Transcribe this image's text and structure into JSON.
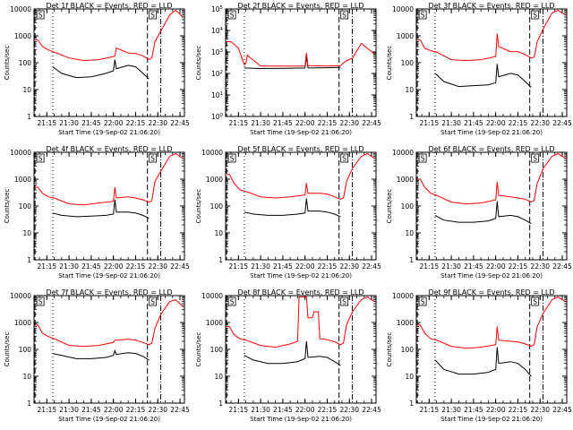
{
  "colors": {
    "events": "#000000",
    "lld": "#ff0000",
    "background": "#ffffff"
  },
  "x_ticks": [
    "21:15",
    "21:30",
    "21:45",
    "22:00",
    "22:15",
    "22:30",
    "22:45"
  ],
  "xlabel": "Start Time (19-Sep-02 21:06:20)",
  "ylabel": "Counts/sec",
  "chart_data": [
    {
      "type": "line",
      "title": "Det 1f BLACK = Events, RED = LLD",
      "scale": "log",
      "ylim": [
        1,
        10000
      ],
      "y_ticks": [
        "1",
        "10",
        "100",
        "1000",
        "10000"
      ],
      "x_range": [
        "21:06:20",
        "22:48"
      ],
      "saa_marker": "S",
      "vlines": {
        "dashed": [
          "21:07",
          "22:23"
        ],
        "dotted": [
          "21:19"
        ],
        "dashdot": [
          "22:32"
        ]
      },
      "series": [
        {
          "color": "black",
          "x": [
            "21:19",
            "21:25",
            "21:35",
            "21:45",
            "21:55",
            "22:00",
            "22:01",
            "22:02",
            "22:10",
            "22:15",
            "22:20",
            "22:24"
          ],
          "y": [
            70,
            40,
            28,
            30,
            40,
            50,
            130,
            60,
            80,
            70,
            40,
            25
          ]
        },
        {
          "color": "red",
          "x": [
            "21:07",
            "21:09",
            "21:12",
            "21:16",
            "21:20",
            "21:30",
            "21:40",
            "21:50",
            "22:00",
            "22:01",
            "22:02",
            "22:10",
            "22:15",
            "22:20",
            "22:24",
            "22:26",
            "22:28",
            "22:32",
            "22:38",
            "22:42",
            "22:47"
          ],
          "y": [
            700,
            700,
            400,
            300,
            250,
            150,
            120,
            130,
            170,
            180,
            350,
            230,
            220,
            180,
            130,
            150,
            600,
            1500,
            6000,
            9000,
            5000
          ]
        }
      ]
    },
    {
      "type": "line",
      "title": "Det 2f BLACK = Events, RED = LLD",
      "scale": "log",
      "ylim": [
        1,
        100000
      ],
      "y_ticks": [
        "10^0",
        "10^1",
        "10^2",
        "10^3",
        "10^4",
        "10^5"
      ],
      "x_range": [
        "21:06:20",
        "22:48"
      ],
      "saa_marker": "S",
      "vlines": {
        "dashed": [
          "21:07",
          "22:23"
        ],
        "dotted": [
          "21:19"
        ],
        "dashdot": [
          "22:32"
        ]
      },
      "series": [
        {
          "color": "black",
          "x": [
            "21:19",
            "21:30",
            "21:45",
            "22:00",
            "22:01",
            "22:02",
            "22:15",
            "22:24"
          ],
          "y": [
            180,
            170,
            175,
            180,
            600,
            180,
            185,
            190
          ]
        },
        {
          "color": "red",
          "x": [
            "21:07",
            "21:10",
            "21:15",
            "21:19",
            "21:20",
            "21:21",
            "21:30",
            "21:45",
            "22:00",
            "22:01",
            "22:02",
            "22:15",
            "22:24",
            "22:28",
            "22:32",
            "22:38",
            "22:42",
            "22:47"
          ],
          "y": [
            3000,
            3000,
            1500,
            250,
            300,
            700,
            220,
            220,
            220,
            900,
            230,
            220,
            230,
            400,
            500,
            2500,
            1500,
            800
          ]
        }
      ]
    },
    {
      "type": "line",
      "title": "Det 3f BLACK = Events, RED = LLD",
      "scale": "log",
      "ylim": [
        1,
        10000
      ],
      "y_ticks": [
        "1",
        "10",
        "100",
        "1000",
        "10000"
      ],
      "x_range": [
        "21:06:20",
        "22:48"
      ],
      "saa_marker": "S",
      "vlines": {
        "dashed": [
          "21:07",
          "22:23"
        ],
        "dotted": [
          "21:19"
        ],
        "dashdot": [
          "22:32"
        ]
      },
      "series": [
        {
          "color": "black",
          "x": [
            "21:19",
            "21:25",
            "21:35",
            "21:45",
            "21:55",
            "22:00",
            "22:01",
            "22:02",
            "22:10",
            "22:15",
            "22:20",
            "22:24"
          ],
          "y": [
            40,
            20,
            13,
            14,
            15,
            18,
            90,
            30,
            40,
            35,
            20,
            12
          ]
        },
        {
          "color": "red",
          "x": [
            "21:07",
            "21:09",
            "21:12",
            "21:16",
            "21:20",
            "21:30",
            "21:40",
            "21:50",
            "22:00",
            "22:01",
            "22:02",
            "22:10",
            "22:15",
            "22:20",
            "22:24",
            "22:26",
            "22:28",
            "22:32",
            "22:38",
            "22:42",
            "22:47"
          ],
          "y": [
            700,
            700,
            350,
            280,
            250,
            130,
            120,
            130,
            170,
            1200,
            400,
            260,
            260,
            200,
            150,
            160,
            600,
            1800,
            7000,
            9000,
            6000
          ]
        }
      ]
    },
    {
      "type": "line",
      "title": "Det 4f BLACK = Events, RED = LLD",
      "scale": "log",
      "ylim": [
        1,
        10000
      ],
      "y_ticks": [
        "1",
        "10",
        "100",
        "1000",
        "10000"
      ],
      "x_range": [
        "21:06:20",
        "22:48"
      ],
      "saa_marker": "S",
      "vlines": {
        "dashed": [
          "21:07",
          "22:23"
        ],
        "dotted": [
          "21:19"
        ],
        "dashdot": [
          "22:32"
        ]
      },
      "series": [
        {
          "color": "black",
          "x": [
            "21:19",
            "21:25",
            "21:35",
            "21:45",
            "21:55",
            "22:00",
            "22:01",
            "22:02",
            "22:10",
            "22:15",
            "22:20",
            "22:24"
          ],
          "y": [
            55,
            45,
            40,
            42,
            45,
            50,
            170,
            60,
            60,
            55,
            45,
            35
          ]
        },
        {
          "color": "red",
          "x": [
            "21:07",
            "21:09",
            "21:12",
            "21:16",
            "21:20",
            "21:30",
            "21:40",
            "21:50",
            "22:00",
            "22:01",
            "22:02",
            "22:10",
            "22:15",
            "22:20",
            "22:24",
            "22:26",
            "22:28",
            "22:32",
            "22:38",
            "22:42",
            "22:47"
          ],
          "y": [
            500,
            500,
            300,
            220,
            200,
            120,
            110,
            130,
            150,
            500,
            200,
            220,
            200,
            170,
            140,
            160,
            800,
            2000,
            7000,
            9000,
            6000
          ]
        }
      ]
    },
    {
      "type": "line",
      "title": "Det 5f BLACK = Events, RED = LLD",
      "scale": "log",
      "ylim": [
        1,
        10000
      ],
      "y_ticks": [
        "1",
        "10",
        "100",
        "1000",
        "10000"
      ],
      "x_range": [
        "21:06:20",
        "22:48"
      ],
      "saa_marker": "S",
      "vlines": {
        "dashed": [
          "21:07",
          "22:23"
        ],
        "dotted": [
          "21:19"
        ],
        "dashdot": [
          "22:32"
        ]
      },
      "series": [
        {
          "color": "black",
          "x": [
            "21:19",
            "21:25",
            "21:35",
            "21:45",
            "21:55",
            "22:00",
            "22:01",
            "22:02",
            "22:10",
            "22:15",
            "22:20",
            "22:24"
          ],
          "y": [
            60,
            50,
            45,
            45,
            50,
            55,
            190,
            65,
            65,
            60,
            50,
            40
          ]
        },
        {
          "color": "red",
          "x": [
            "21:07",
            "21:09",
            "21:12",
            "21:16",
            "21:20",
            "21:30",
            "21:40",
            "21:50",
            "22:00",
            "22:01",
            "22:02",
            "22:10",
            "22:15",
            "22:20",
            "22:24",
            "22:26",
            "22:28",
            "22:32",
            "22:38",
            "22:42",
            "22:47"
          ],
          "y": [
            1500,
            1500,
            700,
            400,
            350,
            220,
            200,
            220,
            260,
            700,
            300,
            300,
            280,
            220,
            180,
            200,
            800,
            2500,
            7000,
            9000,
            6000
          ]
        }
      ]
    },
    {
      "type": "line",
      "title": "Det 6f BLACK = Events, RED = LLD",
      "scale": "log",
      "ylim": [
        1,
        10000
      ],
      "y_ticks": [
        "1",
        "10",
        "100",
        "1000",
        "10000"
      ],
      "x_range": [
        "21:06:20",
        "22:48"
      ],
      "saa_marker": "S",
      "vlines": {
        "dashed": [
          "21:07",
          "22:23"
        ],
        "dotted": [
          "21:19"
        ],
        "dashdot": [
          "22:32"
        ]
      },
      "series": [
        {
          "color": "black",
          "x": [
            "21:19",
            "21:25",
            "21:35",
            "21:45",
            "21:55",
            "22:00",
            "22:01",
            "22:02",
            "22:10",
            "22:15",
            "22:20",
            "22:24"
          ],
          "y": [
            45,
            30,
            25,
            25,
            28,
            35,
            150,
            40,
            45,
            40,
            30,
            22
          ]
        },
        {
          "color": "red",
          "x": [
            "21:07",
            "21:09",
            "21:12",
            "21:16",
            "21:20",
            "21:30",
            "21:40",
            "21:50",
            "22:00",
            "22:01",
            "22:02",
            "22:10",
            "22:15",
            "22:20",
            "22:24",
            "22:26",
            "22:28",
            "22:32",
            "22:38",
            "22:42",
            "22:47"
          ],
          "y": [
            1000,
            1000,
            500,
            300,
            250,
            140,
            120,
            130,
            170,
            800,
            250,
            220,
            200,
            180,
            140,
            160,
            700,
            2500,
            7000,
            9000,
            6000
          ]
        }
      ]
    },
    {
      "type": "line",
      "title": "Det 7f BLACK = Events, RED = LLD",
      "scale": "log",
      "ylim": [
        1,
        10000
      ],
      "y_ticks": [
        "1",
        "10",
        "100",
        "1000",
        "10000"
      ],
      "x_range": [
        "21:06:20",
        "22:48"
      ],
      "saa_marker": "S",
      "vlines": {
        "dashed": [
          "21:07",
          "22:23"
        ],
        "dotted": [
          "21:19"
        ],
        "dashdot": [
          "22:32"
        ]
      },
      "series": [
        {
          "color": "black",
          "x": [
            "21:19",
            "21:25",
            "21:35",
            "21:45",
            "21:55",
            "22:00",
            "22:01",
            "22:02",
            "22:10",
            "22:15",
            "22:20",
            "22:24"
          ],
          "y": [
            70,
            60,
            45,
            45,
            50,
            60,
            90,
            65,
            75,
            70,
            55,
            40
          ]
        },
        {
          "color": "red",
          "x": [
            "21:07",
            "21:09",
            "21:12",
            "21:16",
            "21:20",
            "21:30",
            "21:40",
            "21:50",
            "22:00",
            "22:01",
            "22:02",
            "22:10",
            "22:15",
            "22:20",
            "22:24",
            "22:26",
            "22:28",
            "22:32",
            "22:38",
            "22:42",
            "22:47"
          ],
          "y": [
            800,
            800,
            400,
            300,
            250,
            140,
            130,
            140,
            180,
            220,
            220,
            240,
            220,
            180,
            150,
            170,
            600,
            2000,
            6000,
            7000,
            4000
          ]
        }
      ]
    },
    {
      "type": "line",
      "title": "Det 8f BLACK = Events, RED = LLD",
      "scale": "log",
      "ylim": [
        1,
        10000
      ],
      "y_ticks": [
        "1",
        "10",
        "100",
        "1000",
        "10000"
      ],
      "x_range": [
        "21:06:20",
        "22:48"
      ],
      "saa_marker": "S",
      "vlines": {
        "dashed": [
          "21:07",
          "22:23"
        ],
        "dotted": [
          "21:19"
        ],
        "dashdot": [
          "22:32"
        ]
      },
      "series": [
        {
          "color": "black",
          "x": [
            "21:19",
            "21:25",
            "21:35",
            "21:45",
            "21:55",
            "22:00",
            "22:01",
            "22:02",
            "22:10",
            "22:15",
            "22:20",
            "22:24"
          ],
          "y": [
            60,
            40,
            30,
            30,
            35,
            45,
            200,
            50,
            55,
            50,
            35,
            25
          ]
        },
        {
          "color": "red",
          "x": [
            "21:07",
            "21:09",
            "21:12",
            "21:16",
            "21:20",
            "21:30",
            "21:40",
            "21:50",
            "21:55",
            "21:56",
            "22:01",
            "22:02",
            "22:05",
            "22:06",
            "22:09",
            "22:10",
            "22:15",
            "22:20",
            "22:24",
            "22:26",
            "22:28",
            "22:32",
            "22:38",
            "22:42",
            "22:47"
          ],
          "y": [
            700,
            700,
            350,
            250,
            220,
            140,
            120,
            160,
            200,
            9000,
            9000,
            1500,
            1500,
            2500,
            2500,
            250,
            230,
            190,
            150,
            170,
            800,
            2500,
            7000,
            9000,
            6000
          ]
        }
      ]
    },
    {
      "type": "line",
      "title": "Det 9f BLACK = Events, RED = LLD",
      "scale": "log",
      "ylim": [
        1,
        10000
      ],
      "y_ticks": [
        "1",
        "10",
        "100",
        "1000",
        "10000"
      ],
      "x_range": [
        "21:06:20",
        "22:48"
      ],
      "saa_marker": "S",
      "vlines": {
        "dashed": [
          "21:07",
          "22:23"
        ],
        "dotted": [
          "21:19"
        ],
        "dashdot": [
          "22:32"
        ]
      },
      "series": [
        {
          "color": "black",
          "x": [
            "21:19",
            "21:25",
            "21:35",
            "21:45",
            "21:55",
            "22:00",
            "22:01",
            "22:02",
            "22:10",
            "22:15",
            "22:20",
            "22:24"
          ],
          "y": [
            40,
            18,
            12,
            12,
            14,
            18,
            120,
            30,
            35,
            30,
            18,
            10
          ]
        },
        {
          "color": "red",
          "x": [
            "21:07",
            "21:09",
            "21:12",
            "21:16",
            "21:20",
            "21:30",
            "21:40",
            "21:50",
            "22:00",
            "22:01",
            "22:02",
            "22:10",
            "22:15",
            "22:20",
            "22:24",
            "22:26",
            "22:28",
            "22:32",
            "22:38",
            "22:42",
            "22:47"
          ],
          "y": [
            800,
            800,
            400,
            250,
            220,
            130,
            110,
            120,
            150,
            700,
            220,
            200,
            190,
            160,
            130,
            150,
            700,
            2200,
            7000,
            9000,
            6000
          ]
        }
      ]
    }
  ]
}
